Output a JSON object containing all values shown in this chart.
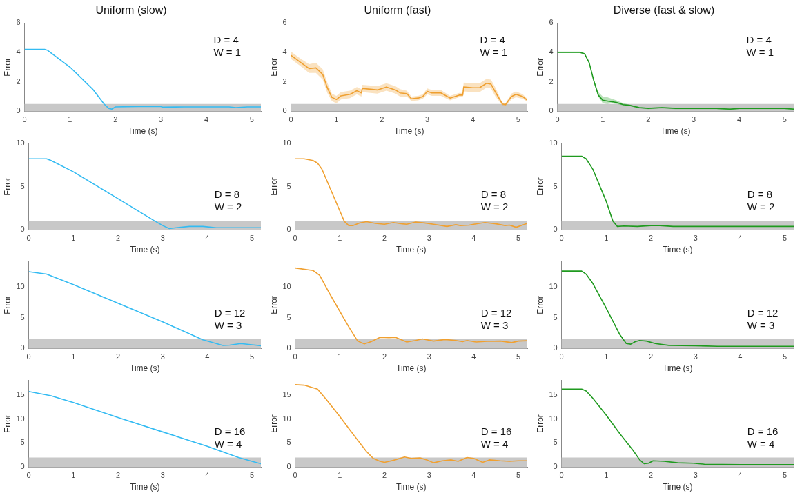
{
  "chart_data": [
    {
      "type": "line",
      "title": "Uniform (slow)",
      "xlabel": "Time (s)",
      "ylabel": "Error",
      "xlim": [
        0,
        5.2
      ],
      "xticks": [
        0,
        1,
        2,
        3,
        4,
        5
      ],
      "ylim": [
        0,
        6
      ],
      "yticks": [
        0,
        2,
        4,
        6
      ],
      "legend": false,
      "grid": false,
      "annotations": [
        "D = 4",
        "W = 1"
      ],
      "bands": [
        {
          "axis": "y",
          "from": 0,
          "to": 0.5,
          "color": "#c8c8c8"
        }
      ],
      "series": [
        {
          "color": "#33bbf2",
          "x": [
            0,
            0.45,
            0.5,
            1.0,
            1.5,
            1.75,
            1.85,
            1.92,
            2.0,
            2.5,
            3.0,
            3.05,
            3.5,
            4.0,
            4.5,
            4.65,
            4.9,
            5.2
          ],
          "values": [
            4.2,
            4.2,
            4.15,
            3.0,
            1.5,
            0.5,
            0.2,
            0.15,
            0.3,
            0.33,
            0.32,
            0.28,
            0.3,
            0.3,
            0.3,
            0.25,
            0.3,
            0.3
          ]
        }
      ]
    },
    {
      "type": "line",
      "title": "Uniform (fast)",
      "xlabel": "Time (s)",
      "ylabel": "Error",
      "xlim": [
        0,
        5.2
      ],
      "xticks": [
        0,
        1,
        2,
        3,
        4,
        5
      ],
      "ylim": [
        0,
        6
      ],
      "yticks": [
        0,
        2,
        4,
        6
      ],
      "legend": false,
      "grid": false,
      "annotations": [
        "D = 4",
        "W = 1"
      ],
      "bands": [
        {
          "axis": "y",
          "from": 0,
          "to": 0.5,
          "color": "#c8c8c8"
        }
      ],
      "series": [
        {
          "color": "#f0a030",
          "x": [
            0,
            0.2,
            0.4,
            0.55,
            0.7,
            0.8,
            0.9,
            1.0,
            1.1,
            1.3,
            1.45,
            1.55,
            1.57,
            1.75,
            1.9,
            2.1,
            2.3,
            2.4,
            2.55,
            2.65,
            2.8,
            2.9,
            3.0,
            3.1,
            3.3,
            3.5,
            3.7,
            3.78,
            3.8,
            4.0,
            4.15,
            4.3,
            4.4,
            4.5,
            4.65,
            4.72,
            4.85,
            4.95,
            5.1,
            5.2
          ],
          "values": [
            3.8,
            3.35,
            2.9,
            2.95,
            2.5,
            1.6,
            0.95,
            0.8,
            1.05,
            1.15,
            1.4,
            1.25,
            1.55,
            1.5,
            1.45,
            1.65,
            1.45,
            1.25,
            1.2,
            0.85,
            0.9,
            1.0,
            1.35,
            1.25,
            1.25,
            0.9,
            1.1,
            1.1,
            1.65,
            1.6,
            1.6,
            1.9,
            1.85,
            1.3,
            0.5,
            0.45,
            1.0,
            1.15,
            1.0,
            0.75
          ],
          "lower": [
            3.55,
            3.1,
            2.6,
            2.6,
            2.15,
            1.25,
            0.7,
            0.55,
            0.8,
            0.9,
            1.15,
            1.0,
            1.3,
            1.25,
            1.2,
            1.4,
            1.2,
            1.0,
            1.0,
            0.7,
            0.75,
            0.85,
            1.15,
            1.05,
            1.05,
            0.75,
            0.95,
            0.95,
            1.35,
            1.3,
            1.3,
            1.6,
            1.55,
            1.0,
            0.4,
            0.35,
            0.8,
            0.95,
            0.85,
            0.65
          ],
          "upper": [
            4.05,
            3.6,
            3.2,
            3.3,
            2.85,
            1.95,
            1.2,
            1.05,
            1.3,
            1.4,
            1.65,
            1.5,
            1.8,
            1.75,
            1.7,
            1.9,
            1.7,
            1.5,
            1.4,
            1.0,
            1.05,
            1.15,
            1.55,
            1.45,
            1.45,
            1.05,
            1.25,
            1.25,
            1.95,
            1.9,
            1.9,
            2.2,
            2.15,
            1.6,
            0.6,
            0.55,
            1.2,
            1.35,
            1.15,
            0.85
          ]
        }
      ]
    },
    {
      "type": "line",
      "title": "Diverse (fast & slow)",
      "xlabel": "Time (s)",
      "ylabel": "Error",
      "xlim": [
        0,
        5.2
      ],
      "xticks": [
        0,
        1,
        2,
        3,
        4,
        5
      ],
      "ylim": [
        0,
        6
      ],
      "yticks": [
        0,
        2,
        4,
        6
      ],
      "legend": false,
      "grid": false,
      "annotations": [
        "D = 4",
        "W = 1"
      ],
      "bands": [
        {
          "axis": "y",
          "from": 0,
          "to": 0.5,
          "color": "#c8c8c8"
        }
      ],
      "series": [
        {
          "color": "#1f9a1f",
          "x": [
            0,
            0.5,
            0.6,
            0.7,
            0.8,
            0.9,
            1.0,
            1.1,
            1.2,
            1.3,
            1.45,
            1.6,
            1.8,
            2.0,
            2.3,
            2.6,
            3.0,
            3.5,
            3.8,
            4.0,
            4.5,
            5.0,
            5.2
          ],
          "values": [
            4.0,
            4.0,
            3.9,
            3.3,
            2.1,
            1.1,
            0.75,
            0.7,
            0.65,
            0.6,
            0.45,
            0.4,
            0.25,
            0.2,
            0.25,
            0.2,
            0.2,
            0.2,
            0.15,
            0.2,
            0.2,
            0.2,
            0.15
          ],
          "lower": [
            3.95,
            3.95,
            3.85,
            3.25,
            2.05,
            1.0,
            0.55,
            0.5,
            0.55,
            0.5,
            0.4,
            0.35,
            0.2,
            0.15,
            0.2,
            0.15,
            0.15,
            0.15,
            0.1,
            0.15,
            0.15,
            0.15,
            0.1
          ],
          "upper": [
            4.05,
            4.05,
            3.95,
            3.35,
            2.2,
            1.3,
            1.0,
            0.95,
            0.85,
            0.75,
            0.55,
            0.45,
            0.3,
            0.25,
            0.3,
            0.25,
            0.25,
            0.25,
            0.2,
            0.25,
            0.25,
            0.25,
            0.2
          ]
        }
      ]
    },
    {
      "type": "line",
      "xlabel": "Time (s)",
      "ylabel": "Error",
      "xlim": [
        0,
        5.2
      ],
      "xticks": [
        0,
        1,
        2,
        3,
        4,
        5
      ],
      "ylim": [
        0,
        10
      ],
      "yticks": [
        0,
        5,
        10
      ],
      "legend": false,
      "grid": false,
      "annotations": [
        "D = 8",
        "W = 2"
      ],
      "bands": [
        {
          "axis": "y",
          "from": 0,
          "to": 1,
          "color": "#c8c8c8"
        }
      ],
      "series": [
        {
          "color": "#33bbf2",
          "x": [
            0,
            0.4,
            0.5,
            1,
            2,
            2.8,
            3.0,
            3.15,
            3.3,
            3.6,
            3.9,
            4.2,
            5.2
          ],
          "values": [
            8.2,
            8.2,
            8.0,
            6.7,
            3.6,
            1.1,
            0.5,
            0.15,
            0.25,
            0.4,
            0.4,
            0.25,
            0.25
          ]
        }
      ]
    },
    {
      "type": "line",
      "xlabel": "Time (s)",
      "ylabel": "Error",
      "xlim": [
        0,
        5.2
      ],
      "xticks": [
        0,
        1,
        2,
        3,
        4,
        5
      ],
      "ylim": [
        0,
        10
      ],
      "yticks": [
        0,
        5,
        10
      ],
      "legend": false,
      "grid": false,
      "annotations": [
        "D = 8",
        "W = 2"
      ],
      "bands": [
        {
          "axis": "y",
          "from": 0,
          "to": 1,
          "color": "#c8c8c8"
        }
      ],
      "series": [
        {
          "color": "#f0a030",
          "x": [
            0,
            0.2,
            0.4,
            0.5,
            0.6,
            0.8,
            1.0,
            1.1,
            1.2,
            1.3,
            1.45,
            1.6,
            1.7,
            1.8,
            2.0,
            2.2,
            2.4,
            2.5,
            2.7,
            2.9,
            3.1,
            3.4,
            3.6,
            3.7,
            3.9,
            4.0,
            4.25,
            4.5,
            4.7,
            4.8,
            4.95,
            5.2
          ],
          "values": [
            8.2,
            8.2,
            8.0,
            7.7,
            7.0,
            4.6,
            2.2,
            1.0,
            0.5,
            0.5,
            0.8,
            0.95,
            0.85,
            0.75,
            0.65,
            0.85,
            0.7,
            0.65,
            0.9,
            0.8,
            0.65,
            0.4,
            0.6,
            0.5,
            0.55,
            0.65,
            0.85,
            0.7,
            0.5,
            0.55,
            0.3,
            0.75
          ]
        }
      ]
    },
    {
      "type": "line",
      "xlabel": "Time (s)",
      "ylabel": "Error",
      "xlim": [
        0,
        5.2
      ],
      "xticks": [
        0,
        1,
        2,
        3,
        4,
        5
      ],
      "ylim": [
        0,
        10
      ],
      "yticks": [
        0,
        5,
        10
      ],
      "legend": false,
      "grid": false,
      "annotations": [
        "D = 8",
        "W = 2"
      ],
      "bands": [
        {
          "axis": "y",
          "from": 0,
          "to": 1,
          "color": "#c8c8c8"
        }
      ],
      "series": [
        {
          "color": "#1f9a1f",
          "x": [
            0,
            0.45,
            0.55,
            0.7,
            1.0,
            1.15,
            1.25,
            1.4,
            1.7,
            2.0,
            2.2,
            2.5,
            3,
            4,
            5.2
          ],
          "values": [
            8.5,
            8.5,
            8.2,
            7.0,
            3.3,
            1.0,
            0.4,
            0.45,
            0.4,
            0.5,
            0.5,
            0.4,
            0.4,
            0.4,
            0.4
          ]
        }
      ]
    },
    {
      "type": "line",
      "xlabel": "Time (s)",
      "ylabel": "Error",
      "xlim": [
        0,
        5.2
      ],
      "xticks": [
        0,
        1,
        2,
        3,
        4,
        5
      ],
      "ylim": [
        0,
        14
      ],
      "yticks": [
        0,
        5,
        10
      ],
      "legend": false,
      "grid": false,
      "annotations": [
        "D = 12",
        "W = 3"
      ],
      "bands": [
        {
          "axis": "y",
          "from": 0,
          "to": 1.5,
          "color": "#c8c8c8"
        }
      ],
      "series": [
        {
          "color": "#33bbf2",
          "x": [
            0,
            0.4,
            1,
            2,
            3,
            3.9,
            4.35,
            4.5,
            4.75,
            5.0,
            5.2
          ],
          "values": [
            12.4,
            12.0,
            10.3,
            7.3,
            4.3,
            1.4,
            0.5,
            0.55,
            0.8,
            0.6,
            0.45
          ]
        }
      ]
    },
    {
      "type": "line",
      "xlabel": "Time (s)",
      "ylabel": "Error",
      "xlim": [
        0,
        5.2
      ],
      "xticks": [
        0,
        1,
        2,
        3,
        4,
        5
      ],
      "ylim": [
        0,
        14
      ],
      "yticks": [
        0,
        5,
        10
      ],
      "legend": false,
      "grid": false,
      "annotations": [
        "D = 12",
        "W = 3"
      ],
      "bands": [
        {
          "axis": "y",
          "from": 0,
          "to": 1.5,
          "color": "#c8c8c8"
        }
      ],
      "series": [
        {
          "color": "#f0a030",
          "x": [
            0,
            0.4,
            0.55,
            0.8,
            1.0,
            1.2,
            1.4,
            1.55,
            1.7,
            1.9,
            2.1,
            2.25,
            2.5,
            2.7,
            2.85,
            3.1,
            3.35,
            3.6,
            3.75,
            3.85,
            4.05,
            4.3,
            4.6,
            4.85,
            5.0,
            5.2
          ],
          "values": [
            13.0,
            12.6,
            11.8,
            8.5,
            6.0,
            3.5,
            1.2,
            0.75,
            1.1,
            1.8,
            1.75,
            1.8,
            1.05,
            1.3,
            1.55,
            1.2,
            1.45,
            1.3,
            1.1,
            1.3,
            1.05,
            1.15,
            1.2,
            0.95,
            1.2,
            1.25
          ]
        }
      ]
    },
    {
      "type": "line",
      "xlabel": "Time (s)",
      "ylabel": "Error",
      "xlim": [
        0,
        5.2
      ],
      "xticks": [
        0,
        1,
        2,
        3,
        4,
        5
      ],
      "ylim": [
        0,
        14
      ],
      "yticks": [
        0,
        5,
        10
      ],
      "legend": false,
      "grid": false,
      "annotations": [
        "D = 12",
        "W = 3"
      ],
      "bands": [
        {
          "axis": "y",
          "from": 0,
          "to": 1.5,
          "color": "#c8c8c8"
        }
      ],
      "series": [
        {
          "color": "#1f9a1f",
          "x": [
            0,
            0.45,
            0.55,
            0.7,
            1.0,
            1.3,
            1.45,
            1.55,
            1.65,
            1.75,
            1.9,
            2.1,
            2.4,
            3.0,
            3.5,
            4,
            5.2
          ],
          "values": [
            12.5,
            12.5,
            12.0,
            10.5,
            6.5,
            2.3,
            0.8,
            0.7,
            1.1,
            1.3,
            1.2,
            0.8,
            0.5,
            0.45,
            0.35,
            0.35,
            0.35
          ]
        }
      ]
    },
    {
      "type": "line",
      "xlabel": "Time (s)",
      "ylabel": "Error",
      "xlim": [
        0,
        5.2
      ],
      "xticks": [
        0,
        1,
        2,
        3,
        4,
        5
      ],
      "ylim": [
        0,
        18
      ],
      "yticks": [
        0,
        5,
        10,
        15
      ],
      "legend": false,
      "grid": false,
      "annotations": [
        "D = 16",
        "W = 4"
      ],
      "bands": [
        {
          "axis": "y",
          "from": 0,
          "to": 2,
          "color": "#c8c8c8"
        }
      ],
      "series": [
        {
          "color": "#33bbf2",
          "x": [
            0,
            0.5,
            1,
            2,
            3,
            4,
            4.7,
            5.0,
            5.2
          ],
          "values": [
            15.7,
            14.8,
            13.4,
            10.3,
            7.3,
            4.3,
            2.0,
            1.2,
            0.7
          ]
        }
      ]
    },
    {
      "type": "line",
      "xlabel": "Time (s)",
      "ylabel": "Error",
      "xlim": [
        0,
        5.2
      ],
      "xticks": [
        0,
        1,
        2,
        3,
        4,
        5
      ],
      "ylim": [
        0,
        18
      ],
      "yticks": [
        0,
        5,
        10,
        15
      ],
      "legend": false,
      "grid": false,
      "annotations": [
        "D = 16",
        "W = 4"
      ],
      "bands": [
        {
          "axis": "y",
          "from": 0,
          "to": 2,
          "color": "#c8c8c8"
        }
      ],
      "series": [
        {
          "color": "#f0a030",
          "x": [
            0,
            0.2,
            0.5,
            0.7,
            1.0,
            1.3,
            1.6,
            1.75,
            1.9,
            2.0,
            2.2,
            2.45,
            2.6,
            2.8,
            2.95,
            3.1,
            3.3,
            3.5,
            3.65,
            3.85,
            4.0,
            4.2,
            4.35,
            4.6,
            4.8,
            5.0,
            5.2
          ],
          "values": [
            17.1,
            17.0,
            16.2,
            14,
            10.5,
            6.8,
            3.2,
            1.8,
            1.2,
            1.0,
            1.4,
            2.1,
            1.8,
            1.9,
            1.5,
            0.9,
            1.3,
            1.5,
            1.2,
            2.0,
            1.8,
            1.0,
            1.5,
            1.3,
            1.2,
            1.3,
            1.3
          ]
        }
      ]
    },
    {
      "type": "line",
      "xlabel": "Time (s)",
      "ylabel": "Error",
      "xlim": [
        0,
        5.2
      ],
      "xticks": [
        0,
        1,
        2,
        3,
        4,
        5
      ],
      "ylim": [
        0,
        18
      ],
      "yticks": [
        0,
        5,
        10,
        15
      ],
      "legend": false,
      "grid": false,
      "annotations": [
        "D = 16",
        "W = 4"
      ],
      "bands": [
        {
          "axis": "y",
          "from": 0,
          "to": 2,
          "color": "#c8c8c8"
        }
      ],
      "series": [
        {
          "color": "#1f9a1f",
          "x": [
            0,
            0.45,
            0.55,
            0.7,
            1.0,
            1.3,
            1.6,
            1.75,
            1.85,
            1.95,
            2.05,
            2.3,
            2.6,
            2.95,
            3.2,
            4.0,
            5.2
          ],
          "values": [
            16.2,
            16.2,
            15.8,
            14.3,
            10.8,
            7.0,
            3.5,
            1.5,
            0.7,
            0.8,
            1.3,
            1.2,
            0.9,
            0.8,
            0.6,
            0.5,
            0.5
          ]
        }
      ]
    }
  ]
}
